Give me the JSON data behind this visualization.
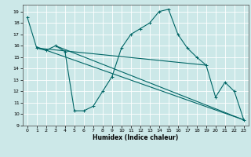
{
  "xlabel": "Humidex (Indice chaleur)",
  "xlim": [
    -0.5,
    23.5
  ],
  "ylim": [
    9,
    19.6
  ],
  "yticks": [
    9,
    10,
    11,
    12,
    13,
    14,
    15,
    16,
    17,
    18,
    19
  ],
  "xticks": [
    0,
    1,
    2,
    3,
    4,
    5,
    6,
    7,
    8,
    9,
    10,
    11,
    12,
    13,
    14,
    15,
    16,
    17,
    18,
    19,
    20,
    21,
    22,
    23
  ],
  "background_color": "#cce8e8",
  "line_color": "#006666",
  "line1_x": [
    0,
    1,
    2,
    3,
    4,
    5,
    6,
    7,
    8,
    9,
    10,
    11,
    12,
    13,
    14,
    15,
    16,
    17,
    18,
    19,
    20,
    21,
    22,
    23
  ],
  "line1_y": [
    18.5,
    15.8,
    15.6,
    16.0,
    15.5,
    10.3,
    10.3,
    10.7,
    12.0,
    13.3,
    15.8,
    17.0,
    17.5,
    18.0,
    19.0,
    19.2,
    17.0,
    15.8,
    15.0,
    14.3,
    11.5,
    12.8,
    12.0,
    9.5
  ],
  "line2_x": [
    1,
    23
  ],
  "line2_y": [
    15.9,
    9.5
  ],
  "line3_x": [
    1,
    19
  ],
  "line3_y": [
    15.8,
    14.3
  ],
  "line4_x": [
    3,
    23
  ],
  "line4_y": [
    16.0,
    9.5
  ]
}
